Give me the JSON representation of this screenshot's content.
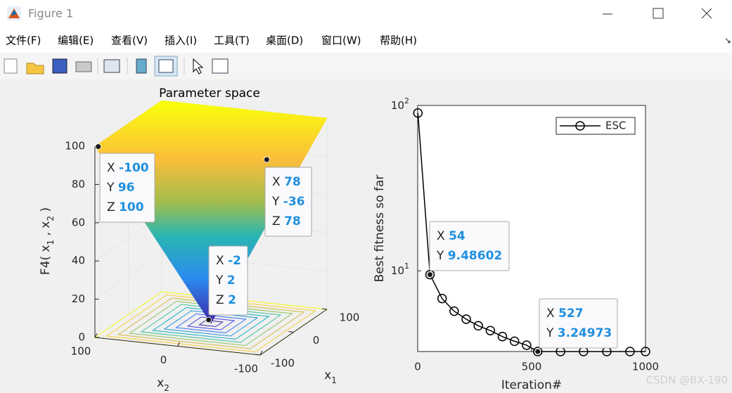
{
  "window": {
    "title": "Figure 1",
    "menu": [
      "文件(F)",
      "编辑(E)",
      "查看(V)",
      "插入(I)",
      "工具(T)",
      "桌面(D)",
      "窗口(W)",
      "帮助(H)"
    ]
  },
  "watermark": "CSDN @BX-190",
  "chart_data": [
    {
      "type": "surface3d",
      "title": "Parameter space",
      "xlabel": [
        "x",
        "1"
      ],
      "ylabel": [
        "x",
        "2"
      ],
      "zlabel": [
        "F4( x",
        "1",
        " , x",
        "2",
        " )"
      ],
      "xlim": [
        -100,
        100
      ],
      "xticks": [
        -100,
        0,
        100
      ],
      "ylim": [
        -100,
        100
      ],
      "yticks": [
        -100,
        0,
        100
      ],
      "zlim": [
        0,
        100
      ],
      "zticks": [
        0,
        20,
        40,
        60,
        80,
        100
      ],
      "datatip_labels": [
        "X",
        "Y",
        "Z"
      ],
      "datatips": [
        {
          "x": -100,
          "y": 96,
          "z": 100
        },
        {
          "x": 78,
          "y": -36,
          "z": 78
        },
        {
          "x": -2,
          "y": 2,
          "z": 2
        }
      ]
    },
    {
      "type": "line",
      "xlabel": "Iteration#",
      "ylabel": "Best fitness so far",
      "log_y": true,
      "xlim": [
        0,
        1000
      ],
      "xticks": [
        0,
        500,
        1000
      ],
      "ylim": [
        3.24973,
        100
      ],
      "yticks": [
        {
          "value": 10,
          "label": "10",
          "sup": "1"
        },
        {
          "value": 100,
          "label": "10",
          "sup": "2"
        }
      ],
      "legend": "northeast",
      "x": [
        1,
        54,
        107,
        160,
        213,
        266,
        319,
        372,
        425,
        478,
        527,
        627,
        728,
        830,
        932,
        1000
      ],
      "series": [
        {
          "name": "ESC",
          "color": "#000000",
          "values": [
            90,
            9.48602,
            6.8,
            5.7,
            5.1,
            4.65,
            4.35,
            4.0,
            3.75,
            3.55,
            3.24973,
            3.24973,
            3.24973,
            3.24973,
            3.24973,
            3.24973
          ]
        }
      ],
      "datatip_labels": [
        "X",
        "Y"
      ],
      "datatips": [
        {
          "x": 54,
          "y": 9.48602
        },
        {
          "x": 527,
          "y": 3.24973
        }
      ]
    }
  ]
}
